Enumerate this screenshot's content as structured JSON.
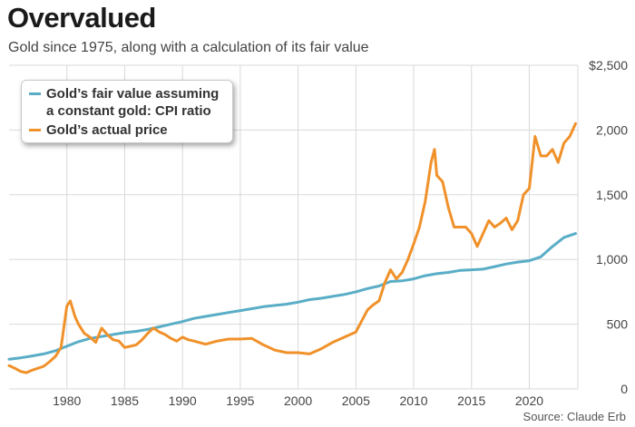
{
  "header": {
    "title": "Overvalued",
    "subtitle": "Gold since 1975, along with a calculation of its fair value",
    "source": "Source: Claude Erb"
  },
  "colors": {
    "fair_value": "#59adc6",
    "actual_price": "#f0912a",
    "grid": "#d9d9d9",
    "axis_text": "#444444"
  },
  "legend": {
    "placement": "top-left",
    "items": [
      {
        "label": "Gold’s fair value assuming\na constant gold: CPI ratio",
        "color": "#59adc6"
      },
      {
        "label": "Gold’s actual price",
        "color": "#f0912a"
      }
    ]
  },
  "chart_data": {
    "type": "line",
    "title": "Overvalued",
    "xlabel": "",
    "ylabel": "",
    "xlim": [
      1975,
      2024.2
    ],
    "ylim": [
      0,
      2500
    ],
    "x_ticks": [
      1980,
      1985,
      1990,
      1995,
      2000,
      2005,
      2010,
      2015,
      2020
    ],
    "y_ticks": [
      0,
      500,
      1000,
      1500,
      2000,
      2500
    ],
    "y_tick_labels": [
      "0",
      "500",
      "1,000",
      "1,500",
      "2,000",
      "$2,500"
    ],
    "grid": true,
    "y_axis_side": "right",
    "series": [
      {
        "name": "Gold’s fair value assuming a constant gold: CPI ratio",
        "color": "#59adc6",
        "x": [
          1975,
          1976,
          1977,
          1978,
          1979,
          1980,
          1981,
          1982,
          1983,
          1984,
          1985,
          1986,
          1987,
          1988,
          1989,
          1990,
          1991,
          1992,
          1993,
          1994,
          1995,
          1996,
          1997,
          1998,
          1999,
          2000,
          2001,
          2002,
          2003,
          2004,
          2005,
          2006,
          2007,
          2008,
          2009,
          2010,
          2011,
          2012,
          2013,
          2014,
          2015,
          2016,
          2017,
          2018,
          2019,
          2020,
          2021,
          2022,
          2023,
          2024
        ],
        "y": [
          230,
          240,
          255,
          270,
          295,
          330,
          365,
          390,
          405,
          420,
          435,
          445,
          460,
          480,
          500,
          520,
          545,
          560,
          575,
          590,
          605,
          620,
          635,
          645,
          655,
          670,
          690,
          700,
          715,
          730,
          750,
          775,
          795,
          830,
          835,
          850,
          875,
          890,
          900,
          915,
          920,
          925,
          945,
          965,
          980,
          990,
          1020,
          1100,
          1170,
          1200
        ]
      },
      {
        "name": "Gold’s actual price",
        "color": "#f0912a",
        "x": [
          1975,
          1975.5,
          1976,
          1976.5,
          1977,
          1977.5,
          1978,
          1978.5,
          1979,
          1979.5,
          1980,
          1980.3,
          1980.7,
          1981,
          1981.5,
          1982,
          1982.5,
          1983,
          1983.5,
          1984,
          1984.5,
          1985,
          1985.5,
          1986,
          1986.5,
          1987,
          1987.5,
          1988,
          1988.5,
          1989,
          1989.5,
          1990,
          1990.5,
          1991,
          1992,
          1993,
          1994,
          1995,
          1996,
          1997,
          1998,
          1999,
          2000,
          2001,
          2002,
          2003,
          2004,
          2005,
          2006,
          2006.5,
          2007,
          2007.5,
          2008,
          2008.5,
          2009,
          2009.5,
          2010,
          2010.5,
          2011,
          2011.5,
          2011.8,
          2012,
          2012.5,
          2013,
          2013.5,
          2014,
          2014.5,
          2015,
          2015.5,
          2016,
          2016.5,
          2017,
          2017.5,
          2018,
          2018.5,
          2019,
          2019.5,
          2020,
          2020.5,
          2021,
          2021.5,
          2022,
          2022.5,
          2023,
          2023.5,
          2024
        ],
        "y": [
          180,
          160,
          135,
          125,
          145,
          160,
          175,
          210,
          250,
          320,
          640,
          680,
          560,
          500,
          430,
          400,
          360,
          470,
          420,
          380,
          370,
          320,
          330,
          340,
          380,
          430,
          470,
          440,
          420,
          390,
          370,
          400,
          380,
          370,
          345,
          370,
          385,
          385,
          390,
          340,
          300,
          280,
          280,
          270,
          310,
          360,
          400,
          440,
          610,
          650,
          680,
          820,
          920,
          850,
          900,
          1000,
          1120,
          1250,
          1450,
          1750,
          1850,
          1650,
          1600,
          1400,
          1250,
          1250,
          1250,
          1200,
          1100,
          1200,
          1300,
          1250,
          1280,
          1320,
          1230,
          1300,
          1500,
          1550,
          1950,
          1800,
          1800,
          1850,
          1750,
          1900,
          1950,
          2050
        ]
      }
    ]
  }
}
